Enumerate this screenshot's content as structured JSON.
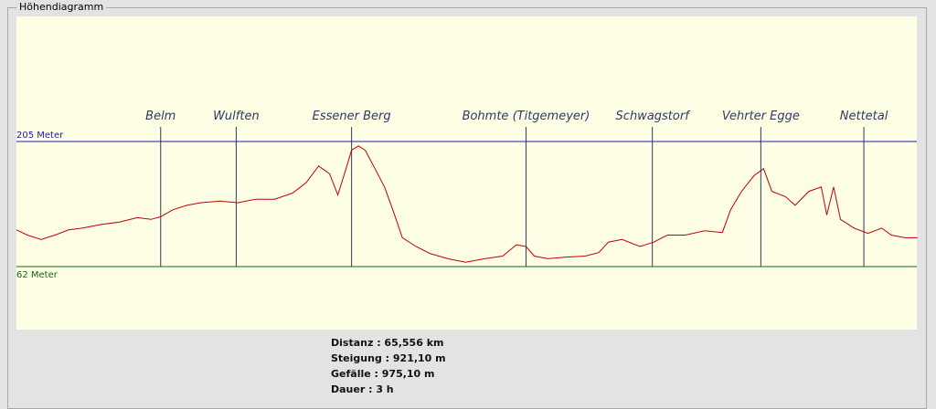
{
  "chart_data": {
    "type": "line",
    "title": "Höhendiagramm",
    "x": [
      0,
      0.8,
      1.8,
      2.8,
      3.8,
      4.8,
      6.1,
      7.5,
      8.8,
      9.8,
      10.5,
      11.4,
      12.4,
      13.4,
      14.8,
      16.1,
      17.4,
      18.8,
      20.1,
      21.1,
      22.0,
      22.8,
      23.4,
      24.0,
      24.4,
      24.9,
      25.4,
      26.1,
      26.8,
      27.4,
      28.1,
      29.1,
      30.1,
      31.4,
      32.7,
      34.1,
      35.4,
      36.4,
      37.1,
      37.7,
      38.7,
      40.1,
      41.4,
      42.4,
      43.1,
      44.1,
      45.4,
      46.4,
      47.4,
      48.7,
      50.1,
      51.4,
      52.0,
      52.8,
      53.7,
      54.4,
      55.0,
      56.0,
      56.7,
      57.7,
      58.6,
      59.0,
      59.5,
      60.0,
      61.0,
      62.0,
      63.0,
      63.7,
      64.7,
      65.6
    ],
    "values": [
      104,
      98,
      93,
      98,
      104,
      106,
      110,
      113,
      118,
      116,
      119,
      127,
      132,
      135,
      137,
      135,
      139,
      139,
      146,
      158,
      177,
      168,
      144,
      174,
      195,
      200,
      195,
      174,
      153,
      127,
      95,
      85,
      77,
      71,
      67,
      71,
      74,
      87,
      85,
      74,
      71,
      73,
      74,
      78,
      90,
      93,
      85,
      90,
      98,
      98,
      103,
      101,
      127,
      148,
      166,
      174,
      148,
      142,
      132,
      148,
      153,
      121,
      153,
      116,
      106,
      100,
      106,
      98,
      95,
      95
    ],
    "color": "#c00000",
    "xlim": [
      0,
      65.556
    ],
    "ylim": [
      -10,
      348
    ],
    "reference_lines": [
      {
        "value": 205,
        "label": "205 Meter",
        "color": "#1c1ca0"
      },
      {
        "value": 62,
        "label": "62 Meter",
        "color": "#0f6a0f"
      }
    ],
    "waypoints": [
      {
        "label": "Belm",
        "x": 10.5
      },
      {
        "label": "Wulften",
        "x": 16.0
      },
      {
        "label": "Essener Berg",
        "x": 24.4
      },
      {
        "label": "Bohmte (Titgemeyer)",
        "x": 37.1
      },
      {
        "label": "Schwagstorf",
        "x": 46.3
      },
      {
        "label": "Vehrter Egge",
        "x": 54.2
      },
      {
        "label": "Nettetal",
        "x": 61.7
      }
    ],
    "waypoint_color": "#2e3a60"
  },
  "stats": [
    "Distanz : 65,556 km",
    "Steigung : 921,10 m",
    "Gefälle : 975,10 m",
    "Dauer : 3 h"
  ]
}
